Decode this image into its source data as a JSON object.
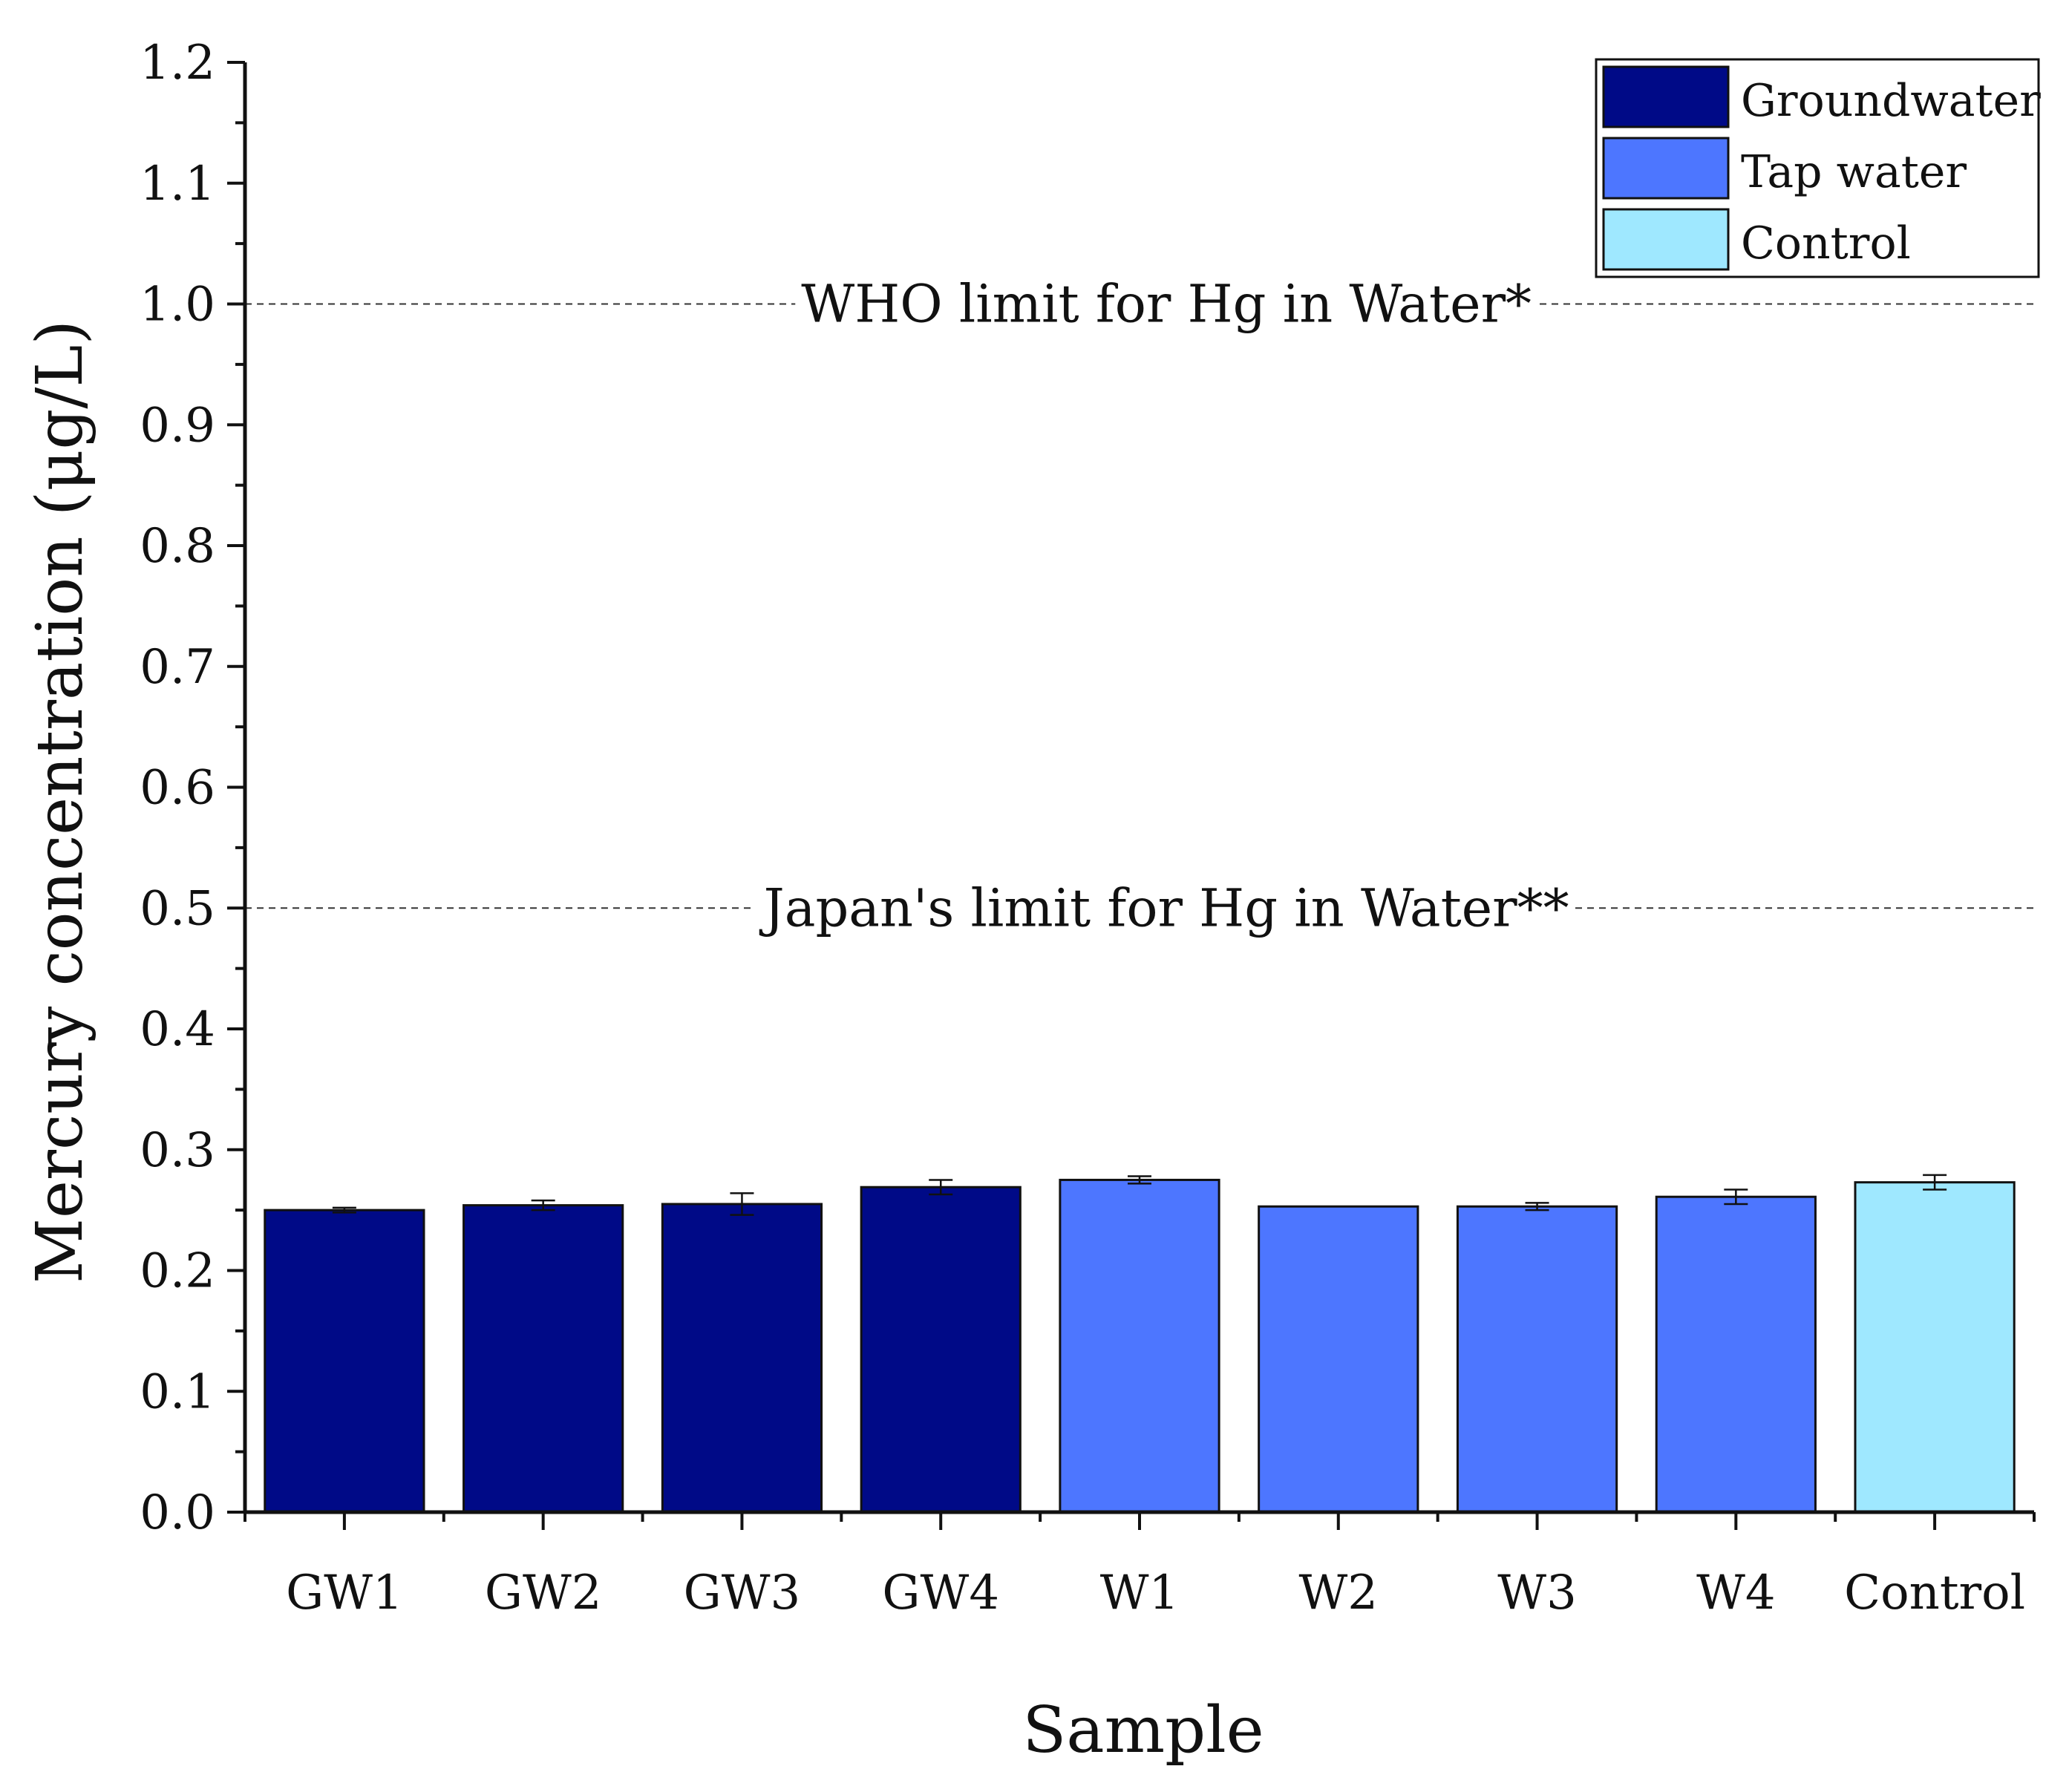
{
  "chart_data": {
    "type": "bar",
    "title": "",
    "xlabel": "Sample",
    "ylabel": "Mercury concentration (μg/L)",
    "ylim": [
      0,
      1.2
    ],
    "yticks": [
      "0.0",
      "0.1",
      "0.2",
      "0.3",
      "0.4",
      "0.5",
      "0.6",
      "0.7",
      "0.8",
      "0.9",
      "1.0",
      "1.1",
      "1.2"
    ],
    "categories": [
      "GW1",
      "GW2",
      "GW3",
      "GW4",
      "W1",
      "W2",
      "W3",
      "W4",
      "Control"
    ],
    "values": [
      0.25,
      0.254,
      0.255,
      0.269,
      0.275,
      0.253,
      0.253,
      0.261,
      0.273
    ],
    "errors": [
      0.002,
      0.004,
      0.009,
      0.006,
      0.003,
      0.0,
      0.003,
      0.006,
      0.006
    ],
    "groups": [
      "Groundwater",
      "Groundwater",
      "Groundwater",
      "Groundwater",
      "Tap water",
      "Tap water",
      "Tap water",
      "Tap water",
      "Control"
    ],
    "legend": [
      {
        "label": "Groundwater",
        "color": "#000a87"
      },
      {
        "label": "Tap water",
        "color": "#4d76ff"
      },
      {
        "label": "Control",
        "color": "#9fe8ff"
      }
    ],
    "legend_position": "top-right",
    "reference_lines": [
      {
        "value": 1.0,
        "label": "WHO limit for Hg in Water*"
      },
      {
        "value": 0.5,
        "label": "Japan's limit for Hg in Water**"
      }
    ],
    "grid": false
  }
}
